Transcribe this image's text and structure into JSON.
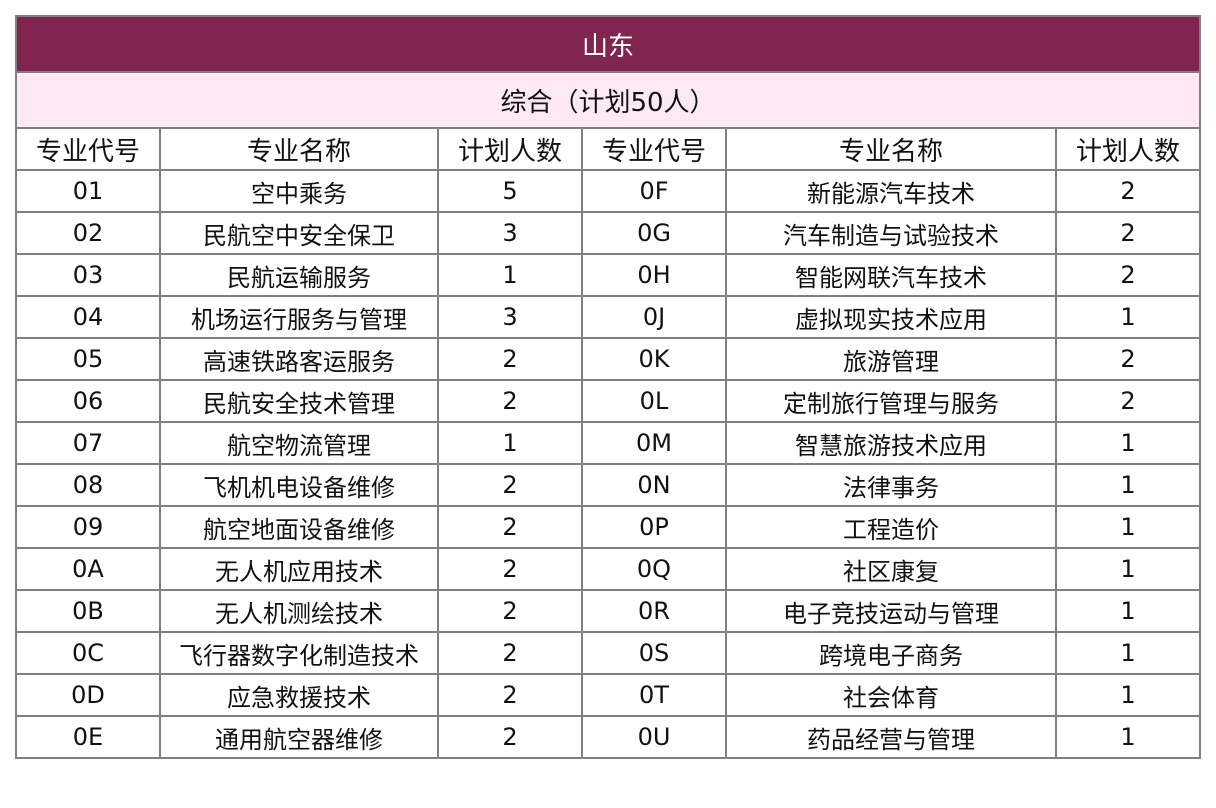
{
  "title": "山东",
  "subtitle": "综合（计划50人）",
  "colors": {
    "title_bg": "#7f2550",
    "subtitle_bg": "#fde9f3",
    "border": "#808080"
  },
  "headers": [
    "专业代号",
    "专业名称",
    "计划人数",
    "专业代号",
    "专业名称",
    "计划人数"
  ],
  "rows": [
    [
      "01",
      "空中乘务",
      "5",
      "0F",
      "新能源汽车技术",
      "2"
    ],
    [
      "02",
      "民航空中安全保卫",
      "3",
      "0G",
      "汽车制造与试验技术",
      "2"
    ],
    [
      "03",
      "民航运输服务",
      "1",
      "0H",
      "智能网联汽车技术",
      "2"
    ],
    [
      "04",
      "机场运行服务与管理",
      "3",
      "0J",
      "虚拟现实技术应用",
      "1"
    ],
    [
      "05",
      "高速铁路客运服务",
      "2",
      "0K",
      "旅游管理",
      "2"
    ],
    [
      "06",
      "民航安全技术管理",
      "2",
      "0L",
      "定制旅行管理与服务",
      "2"
    ],
    [
      "07",
      "航空物流管理",
      "1",
      "0M",
      "智慧旅游技术应用",
      "1"
    ],
    [
      "08",
      "飞机机电设备维修",
      "2",
      "0N",
      "法律事务",
      "1"
    ],
    [
      "09",
      "航空地面设备维修",
      "2",
      "0P",
      "工程造价",
      "1"
    ],
    [
      "0A",
      "无人机应用技术",
      "2",
      "0Q",
      "社区康复",
      "1"
    ],
    [
      "0B",
      "无人机测绘技术",
      "2",
      "0R",
      "电子竞技运动与管理",
      "1"
    ],
    [
      "0C",
      "飞行器数字化制造技术",
      "2",
      "0S",
      "跨境电子商务",
      "1"
    ],
    [
      "0D",
      "应急救援技术",
      "2",
      "0T",
      "社会体育",
      "1"
    ],
    [
      "0E",
      "通用航空器维修",
      "2",
      "0U",
      "药品经营与管理",
      "1"
    ]
  ]
}
